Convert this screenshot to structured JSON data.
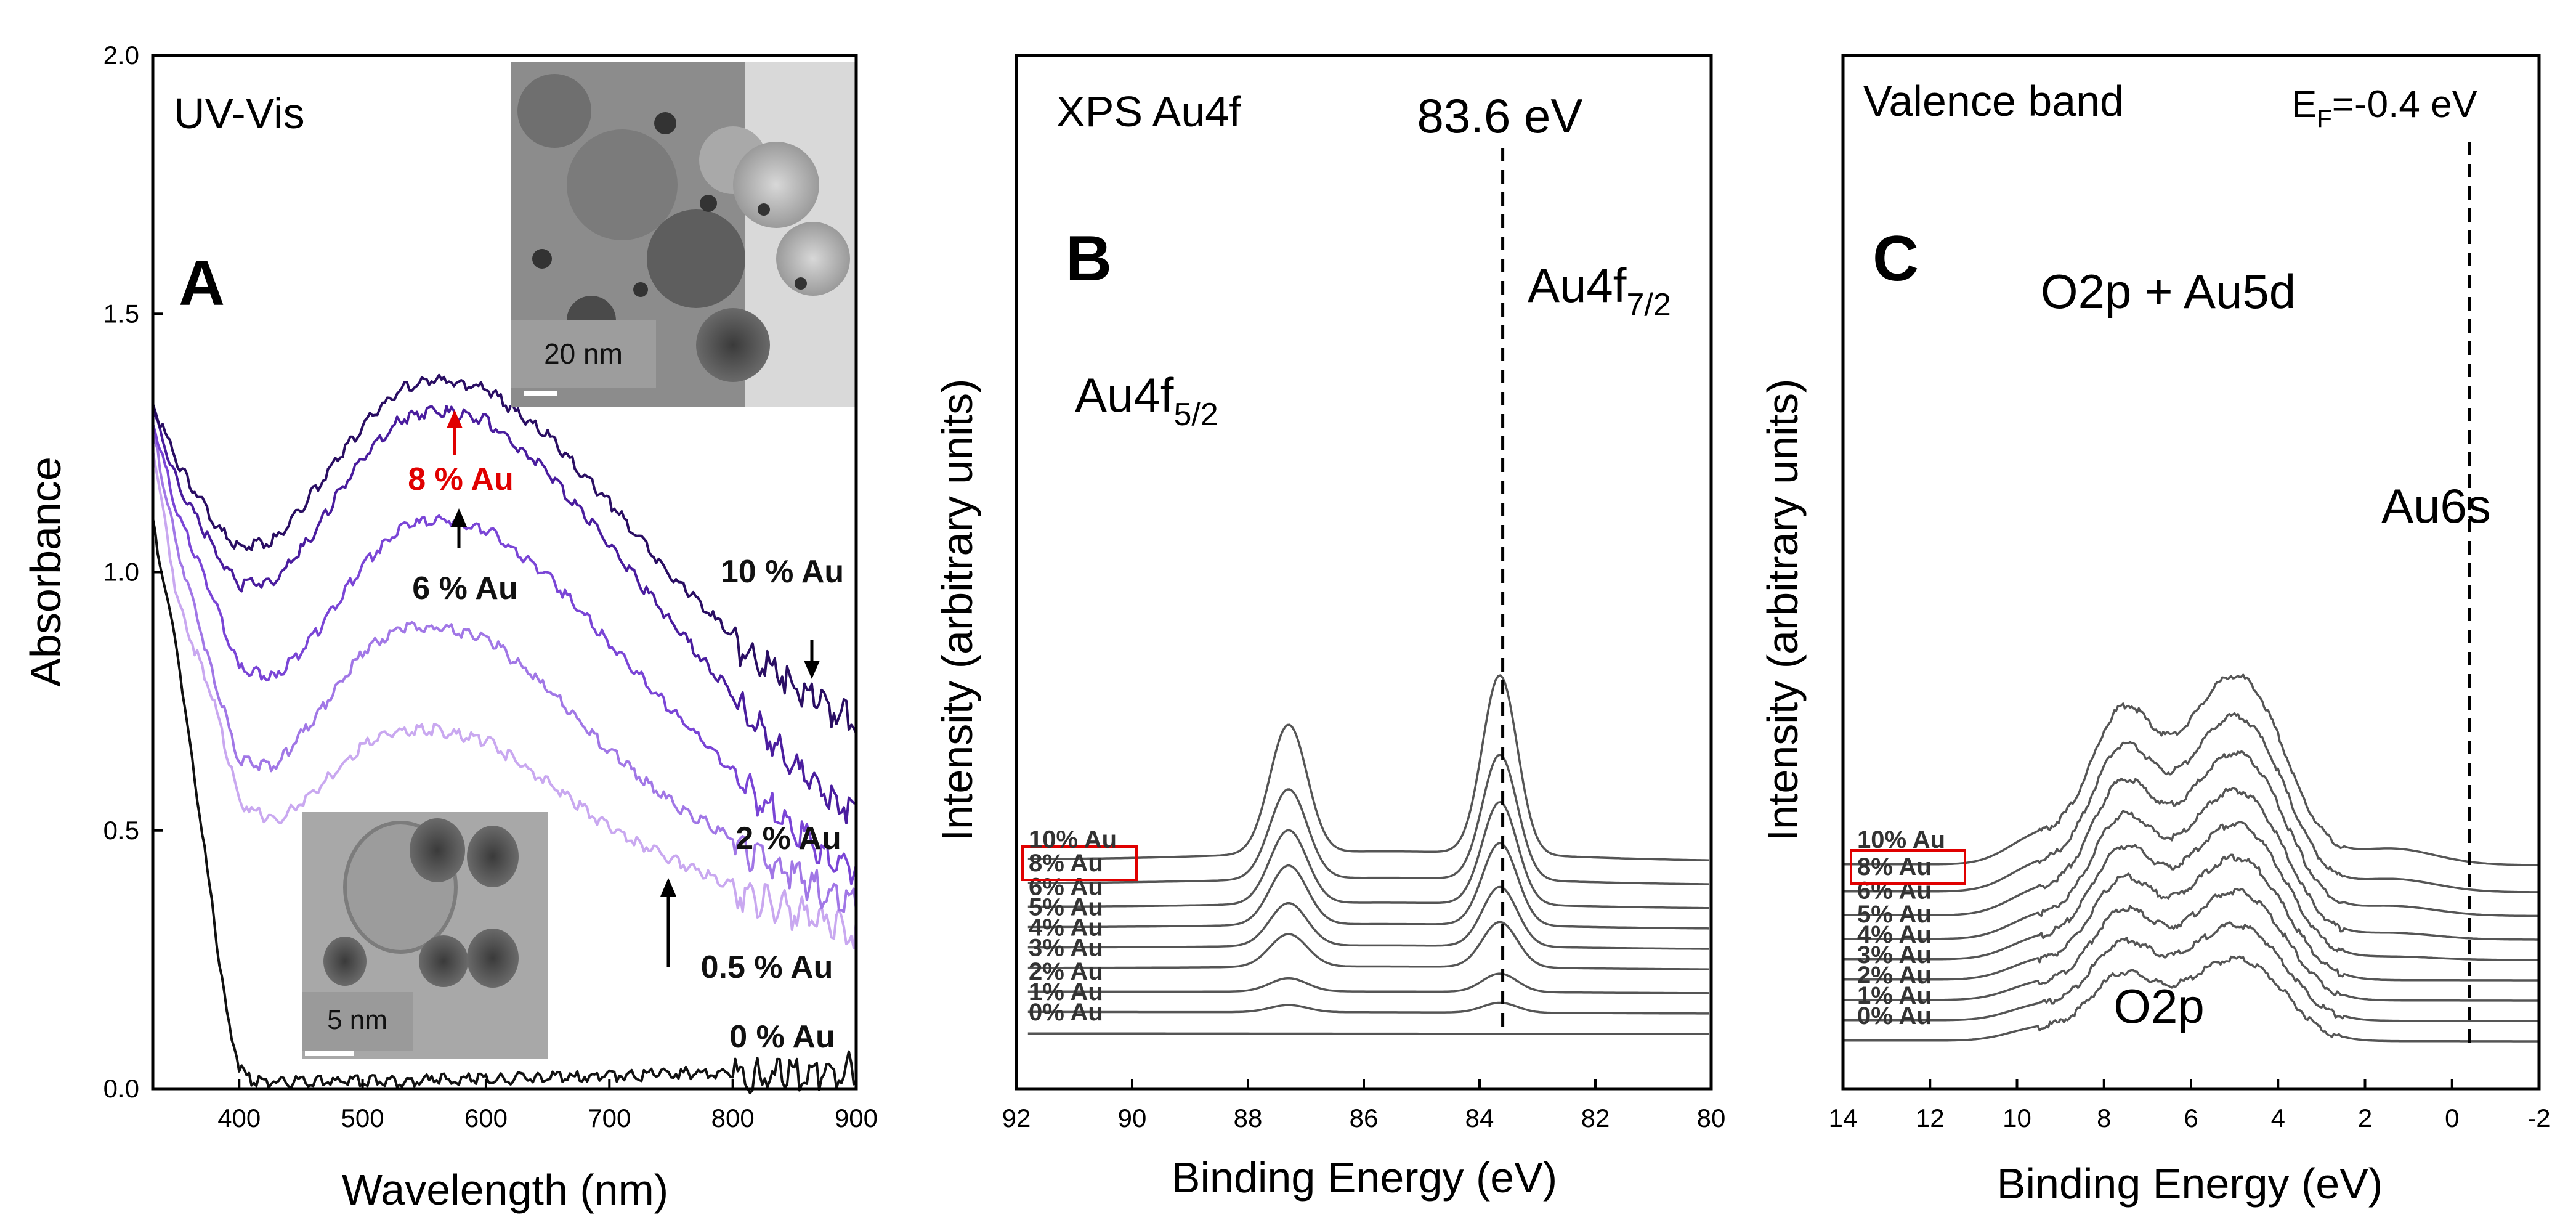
{
  "chart_data": [
    {
      "panel": "A",
      "type": "line",
      "corner_title": "UV-Vis",
      "xlabel": "Wavelength (nm)",
      "ylabel": "Absorbance",
      "xlim": [
        330,
        900
      ],
      "ylim": [
        0,
        2.0
      ],
      "xticks": [
        "400",
        "500",
        "600",
        "700",
        "800",
        "900"
      ],
      "yticks": [
        "0.0",
        "0.5",
        "1.0",
        "1.5",
        "2.0"
      ],
      "series": [
        {
          "name": "0 % Au",
          "color": "#111111",
          "x": [
            330,
            350,
            370,
            390,
            400,
            410,
            430,
            500,
            600,
            700,
            800,
            880,
            900
          ],
          "y": [
            1.1,
            0.85,
            0.5,
            0.15,
            0.05,
            0.02,
            0.02,
            0.02,
            0.025,
            0.03,
            0.04,
            0.05,
            0.06
          ]
        },
        {
          "name": "0.5 % Au",
          "color": "#c9a8f0",
          "x": [
            330,
            350,
            380,
            400,
            430,
            460,
            500,
            530,
            560,
            600,
            650,
            700,
            750,
            800,
            850,
            900
          ],
          "y": [
            1.25,
            0.95,
            0.75,
            0.56,
            0.52,
            0.58,
            0.67,
            0.7,
            0.7,
            0.68,
            0.6,
            0.51,
            0.45,
            0.4,
            0.36,
            0.32
          ]
        },
        {
          "name": "2 % Au",
          "color": "#a177e6",
          "x": [
            330,
            350,
            380,
            400,
            430,
            460,
            500,
            530,
            560,
            600,
            650,
            700,
            750,
            800,
            850,
            900
          ],
          "y": [
            1.28,
            1.05,
            0.8,
            0.64,
            0.63,
            0.72,
            0.85,
            0.9,
            0.9,
            0.88,
            0.78,
            0.66,
            0.56,
            0.49,
            0.43,
            0.37
          ]
        },
        {
          "name": "6 % Au",
          "color": "#7a45d6",
          "x": [
            330,
            350,
            380,
            400,
            430,
            460,
            500,
            530,
            560,
            600,
            650,
            700,
            750,
            800,
            850,
            900
          ],
          "y": [
            1.3,
            1.12,
            0.95,
            0.82,
            0.8,
            0.88,
            1.02,
            1.09,
            1.11,
            1.09,
            1.0,
            0.87,
            0.74,
            0.62,
            0.52,
            0.44
          ]
        },
        {
          "name": "8 % Au",
          "color": "#4a1d9e",
          "x": [
            330,
            350,
            380,
            400,
            430,
            460,
            500,
            530,
            560,
            600,
            650,
            700,
            750,
            800,
            850,
            900
          ],
          "y": [
            1.32,
            1.18,
            1.05,
            0.98,
            0.99,
            1.08,
            1.23,
            1.3,
            1.32,
            1.3,
            1.2,
            1.06,
            0.91,
            0.77,
            0.64,
            0.55
          ]
        },
        {
          "name": "10 % Au",
          "color": "#2a0e63",
          "x": [
            330,
            350,
            380,
            400,
            430,
            460,
            500,
            530,
            560,
            600,
            650,
            700,
            750,
            800,
            850,
            900
          ],
          "y": [
            1.33,
            1.22,
            1.1,
            1.05,
            1.07,
            1.16,
            1.29,
            1.36,
            1.38,
            1.36,
            1.27,
            1.14,
            1.0,
            0.88,
            0.8,
            0.72
          ]
        }
      ],
      "annotations": [
        "8 % Au",
        "6 % Au",
        "10 % Au",
        "2 % Au",
        "0.5 % Au",
        "0 % Au"
      ],
      "inset_top_scale": "20 nm",
      "inset_bottom_scale": "5 nm"
    },
    {
      "panel": "B",
      "type": "line",
      "corner_title": "XPS Au4f",
      "xlabel": "Binding Energy (eV)",
      "ylabel": "Intensity (arbitrary units)",
      "xlim": [
        92,
        80
      ],
      "xticks": [
        "92",
        "90",
        "88",
        "86",
        "84",
        "82",
        "80"
      ],
      "reference_line": {
        "x": 83.6,
        "label": "83.6 eV"
      },
      "peak_labels": [
        "Au4f",
        "5/2",
        "Au4f",
        "7/2"
      ],
      "series": [
        {
          "name": "0% Au",
          "peak_height": 0.0,
          "offset": 0.0
        },
        {
          "name": "1% Au",
          "peak_height": 0.35,
          "offset": 0.6
        },
        {
          "name": "2% Au",
          "peak_height": 0.65,
          "offset": 1.2
        },
        {
          "name": "3% Au",
          "peak_height": 1.6,
          "offset": 1.9
        },
        {
          "name": "4% Au",
          "peak_height": 2.1,
          "offset": 2.5
        },
        {
          "name": "5% Au",
          "peak_height": 2.9,
          "offset": 3.1
        },
        {
          "name": "6% Au",
          "peak_height": 3.6,
          "offset": 3.7
        },
        {
          "name": "8% Au",
          "peak_height": 4.4,
          "offset": 4.4,
          "highlight": true
        },
        {
          "name": "10% Au",
          "peak_height": 6.3,
          "offset": 5.1
        }
      ]
    },
    {
      "panel": "C",
      "type": "line",
      "corner_title": "Valence band",
      "fermi_label": [
        "E",
        "F",
        "=-0.4 eV"
      ],
      "xlabel": "Binding Energy (eV)",
      "ylabel": "Intensity (arbitrary units)",
      "xlim": [
        14,
        -2
      ],
      "xticks": [
        "14",
        "12",
        "10",
        "8",
        "6",
        "4",
        "2",
        "0",
        "-2"
      ],
      "reference_line": {
        "x": -0.4
      },
      "region_labels": [
        "O2p + Au5d",
        "Au6s",
        "O2p"
      ],
      "series": [
        {
          "name": "0% Au",
          "offset": 0.0
        },
        {
          "name": "1% Au",
          "offset": 0.6
        },
        {
          "name": "2% Au",
          "offset": 1.2
        },
        {
          "name": "3% Au",
          "offset": 1.8
        },
        {
          "name": "4% Au",
          "offset": 2.4
        },
        {
          "name": "5% Au",
          "offset": 3.0
        },
        {
          "name": "6% Au",
          "offset": 3.7
        },
        {
          "name": "8% Au",
          "offset": 4.4,
          "highlight": true
        },
        {
          "name": "10% Au",
          "offset": 5.2
        }
      ]
    }
  ],
  "colors": {
    "curve_gray": "#555555",
    "highlight_red": "#e00000",
    "axis": "#000000"
  }
}
